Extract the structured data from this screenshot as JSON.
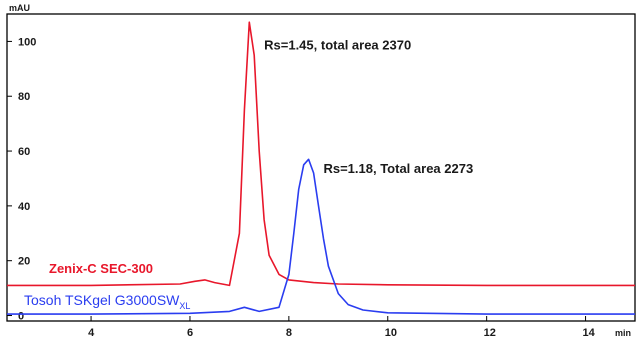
{
  "chart_data": {
    "type": "line",
    "xlabel": "min",
    "ylabel": "mAU",
    "xlim": [
      2.3,
      15.0
    ],
    "ylim": [
      -2,
      110
    ],
    "xticks": [
      4,
      6,
      8,
      10,
      12,
      14
    ],
    "yticks": [
      0,
      20,
      40,
      60,
      80,
      100
    ],
    "grid": false,
    "series": [
      {
        "name": "Zenix-C SEC-300",
        "color": "#e8172b",
        "x": [
          2.3,
          4.0,
          5.8,
          6.1,
          6.3,
          6.5,
          6.8,
          7.0,
          7.1,
          7.2,
          7.3,
          7.4,
          7.5,
          7.6,
          7.8,
          8.0,
          8.5,
          9.0,
          10.0,
          12.0,
          15.0
        ],
        "y": [
          11,
          11,
          11.5,
          12.5,
          13,
          12,
          11,
          30,
          75,
          107,
          95,
          60,
          35,
          22,
          15,
          13,
          12,
          11.5,
          11.2,
          11,
          11
        ]
      },
      {
        "name": "Tosoh TSKgel G3000SWXL",
        "color": "#2a3df0",
        "x": [
          2.3,
          4.0,
          6.0,
          6.8,
          7.1,
          7.4,
          7.8,
          8.0,
          8.1,
          8.2,
          8.3,
          8.4,
          8.5,
          8.6,
          8.7,
          8.8,
          9.0,
          9.2,
          9.5,
          10.0,
          12.0,
          15.0
        ],
        "y": [
          0.5,
          0.5,
          0.8,
          1.5,
          3,
          1.5,
          3,
          15,
          30,
          46,
          55,
          57,
          52,
          40,
          28,
          18,
          8,
          4,
          2,
          1,
          0.5,
          0.5
        ]
      }
    ],
    "annotations": [
      {
        "text": "Rs=1.45, total area 2370",
        "x": 7.5,
        "y": 97
      },
      {
        "text": "Rs=1.18, Total area 2273",
        "x": 8.7,
        "y": 52
      }
    ],
    "legend": {
      "zenix": "Zenix-C SEC-300",
      "tosoh_main": "Tosoh TSKgel G3000SW",
      "tosoh_sub": "XL"
    }
  }
}
